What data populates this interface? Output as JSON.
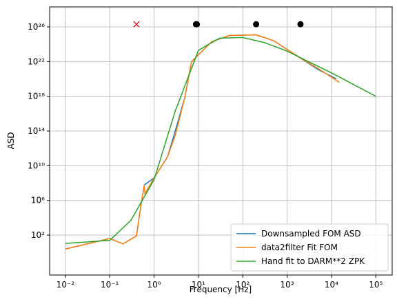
{
  "chart_data": {
    "type": "line",
    "xlabel": "Frequency [Hz]",
    "ylabel": "ASD",
    "xscale": "log",
    "yscale": "log",
    "grid": true,
    "legend": "lower right",
    "xlim": [
      0.0044,
      234000
    ],
    "ylim": [
      0.0025,
      2e+28
    ],
    "xticks": [
      {
        "value": 0.01,
        "label": "10⁻²"
      },
      {
        "value": 0.1,
        "label": "10⁻¹"
      },
      {
        "value": 1,
        "label": "10⁰"
      },
      {
        "value": 10,
        "label": "10¹"
      },
      {
        "value": 100,
        "label": "10²"
      },
      {
        "value": 1000,
        "label": "10³"
      },
      {
        "value": 10000,
        "label": "10⁴"
      },
      {
        "value": 100000,
        "label": "10⁵"
      }
    ],
    "yticks": [
      {
        "value": 100,
        "label": "10²"
      },
      {
        "value": 1000000,
        "label": "10⁶"
      },
      {
        "value": 10000000000.0,
        "label": "10¹⁰"
      },
      {
        "value": 100000000000000.0,
        "label": "10¹⁴"
      },
      {
        "value": 1e+18,
        "label": "10¹⁸"
      },
      {
        "value": 1e+22,
        "label": "10²²"
      },
      {
        "value": 1e+26,
        "label": "10²⁶"
      }
    ],
    "series": [
      {
        "name": "Downsampled FOM ASD",
        "color": "#1f77b4",
        "x": [
          0.01,
          0.1,
          0.2,
          0.4,
          0.5,
          0.6,
          1,
          2,
          3,
          5,
          7,
          10,
          20,
          50,
          200,
          500,
          2000,
          5000,
          13000
        ],
        "values": [
          2.5,
          40,
          10,
          80,
          200000.0,
          60000000.0,
          400000000.0,
          100000000000.0,
          100000000000000.0,
          1e+18,
          1e+22,
          6e+22,
          2e+24,
          1e+25,
          1.2e+25,
          2.5e+24,
          2.5e+22,
          1.2e+21,
          1e+20
        ]
      },
      {
        "name": "data2filter Fit FOM",
        "color": "#ff7f0e",
        "x": [
          0.01,
          0.1,
          0.2,
          0.4,
          0.5,
          0.6,
          0.62,
          1,
          2,
          3,
          5,
          7,
          10,
          20,
          50,
          200,
          500,
          2000,
          5000,
          15000
        ],
        "values": [
          2.5,
          40,
          10,
          80,
          200000.0,
          60000000.0,
          6000000.0,
          400000000.0,
          100000000000.0,
          30000000000000.0,
          1e+18,
          1e+22,
          6e+22,
          2e+24,
          1e+25,
          1.2e+25,
          2.5e+24,
          2.5e+22,
          1.6e+21,
          4e+19
        ]
      },
      {
        "name": "Hand fit to DARM**2 ZPK",
        "color": "#2ca02c",
        "x": [
          0.01,
          0.1,
          0.3,
          1,
          3,
          10,
          30,
          100,
          300,
          1000,
          3000,
          10000,
          100000
        ],
        "values": [
          11,
          25,
          5000,
          250000000.0,
          2e+16,
          2e+23,
          5e+24,
          6e+24,
          1.6e+24,
          1.6e+23,
          1e+22,
          5e+20,
          1e+18
        ]
      }
    ],
    "markers": [
      {
        "marker": "x",
        "color": "#d62728",
        "x": [
          0.4
        ],
        "values": [
          2e+26
        ]
      },
      {
        "marker": "o",
        "color": "#000000",
        "x": [
          8.8,
          9.2,
          200,
          2000
        ],
        "values": [
          2e+26,
          2e+26,
          2e+26,
          2e+26
        ]
      }
    ]
  }
}
